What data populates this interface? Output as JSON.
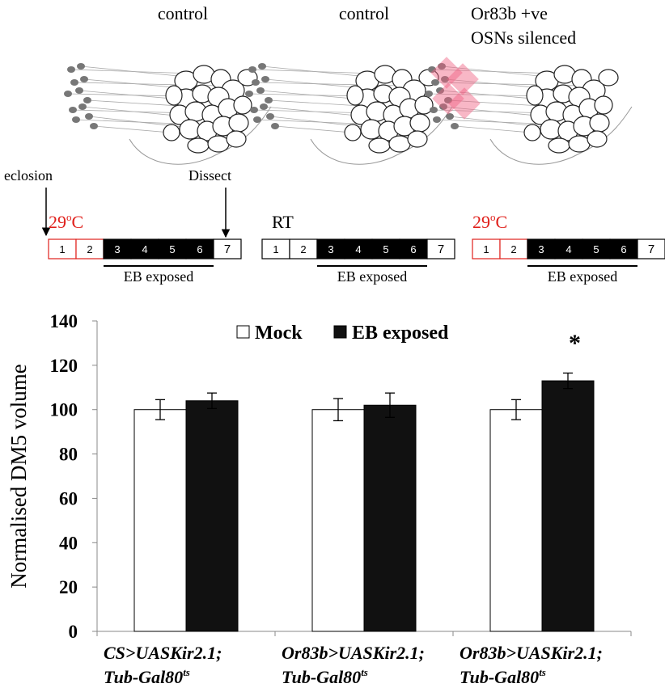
{
  "diagram": {
    "panels": [
      {
        "title": [
          "control"
        ],
        "temperature": [
          "29",
          "o",
          "C"
        ],
        "temperature_color": "#e0201b",
        "outline_color": "#e0201b"
      },
      {
        "title": [
          "control"
        ],
        "temperature": [
          "RT"
        ],
        "temperature_color": "#000000",
        "outline_color": "#000000"
      },
      {
        "title": [
          "Or83b +ve",
          "OSNs silenced"
        ],
        "temperature": [
          "29",
          "o",
          "C"
        ],
        "temperature_color": "#e0201b",
        "outline_color": "#e0201b"
      }
    ],
    "eclosion": "eclosion",
    "dissect": "Dissect",
    "days": [
      "1",
      "2",
      "3",
      "4",
      "5",
      "6",
      "7"
    ],
    "exposure": "EB exposed"
  },
  "chart_data": {
    "type": "bar",
    "ylabel": "Normalised DM5 volume",
    "categories": [
      [
        "CS>UASKir2.1;",
        "Tub-Gal80",
        "ts"
      ],
      [
        "Or83b>UASKir2.1;",
        "Tub-Gal80",
        "ts"
      ],
      [
        "Or83b>UASKir2.1;",
        "Tub-Gal80",
        "ts"
      ]
    ],
    "series": [
      {
        "name": "Mock",
        "color": "#ffffff",
        "values": [
          100,
          100,
          100
        ],
        "errors": [
          4.5,
          5,
          4.5
        ]
      },
      {
        "name": "EB exposed",
        "color": "#111111",
        "values": [
          104,
          102,
          113
        ],
        "errors": [
          3.5,
          5.5,
          3.5
        ]
      }
    ],
    "annotation": "*",
    "ylim": [
      0,
      140
    ],
    "yticks": [
      0,
      20,
      40,
      60,
      80,
      100,
      120,
      140
    ],
    "grid": false,
    "legend": "top"
  }
}
